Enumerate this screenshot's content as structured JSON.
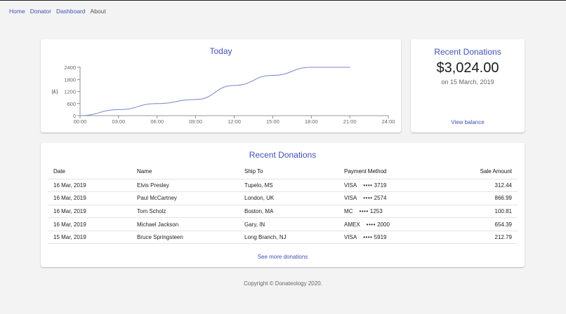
{
  "nav": {
    "items": [
      {
        "label": "Home"
      },
      {
        "label": "Donator"
      },
      {
        "label": "Dashboard"
      },
      {
        "label": "About"
      }
    ]
  },
  "chart_card": {
    "title": "Today",
    "chart_data": {
      "type": "line",
      "title": "Today",
      "ylabel": "(£)",
      "xlabel": "",
      "x": [
        "00:00",
        "03:00",
        "06:00",
        "09:00",
        "12:00",
        "15:00",
        "18:00",
        "21:00"
      ],
      "series": [
        {
          "values": [
            0,
            300,
            600,
            800,
            1500,
            2000,
            2400,
            2400
          ]
        }
      ],
      "xticks": [
        "00:00",
        "03:00",
        "06:00",
        "09:00",
        "12:00",
        "15:00",
        "18:00",
        "21:00",
        "24:00"
      ],
      "yticks": [
        "0",
        "600",
        "1200",
        "1800",
        "2400"
      ],
      "ylim": [
        0,
        2400
      ],
      "grid": false,
      "line_color": "#7986cb"
    }
  },
  "balance_card": {
    "title": "Recent Donations",
    "amount": "$3,024.00",
    "date": "on 15 March, 2019",
    "link": "View balance"
  },
  "table_card": {
    "title": "Recent Donations",
    "columns": [
      "Date",
      "Name",
      "Ship To",
      "Payment Method",
      "Sale Amount"
    ],
    "rows": [
      {
        "date": "16 Mar, 2019",
        "name": "Elvis Presley",
        "ship_to": "Tupelo, MS",
        "card": "VISA",
        "dots": "••••",
        "last4": "3719",
        "amount": "312.44"
      },
      {
        "date": "16 Mar, 2019",
        "name": "Paul McCartney",
        "ship_to": "London, UK",
        "card": "VISA",
        "dots": "••••",
        "last4": "2574",
        "amount": "866.99"
      },
      {
        "date": "16 Mar, 2019",
        "name": "Tom Scholz",
        "ship_to": "Boston, MA",
        "card": "MC",
        "dots": "••••",
        "last4": "1253",
        "amount": "100.81"
      },
      {
        "date": "16 Mar, 2019",
        "name": "Michael Jackson",
        "ship_to": "Gary, IN",
        "card": "AMEX",
        "dots": "••••",
        "last4": "2000",
        "amount": "654.39"
      },
      {
        "date": "15 Mar, 2019",
        "name": "Bruce Springsteen",
        "ship_to": "Long Branch, NJ",
        "card": "VISA",
        "dots": "••••",
        "last4": "5919",
        "amount": "212.79"
      }
    ],
    "link": "See more donations"
  },
  "footer": {
    "text": "Copyright © Donateology 2020."
  }
}
